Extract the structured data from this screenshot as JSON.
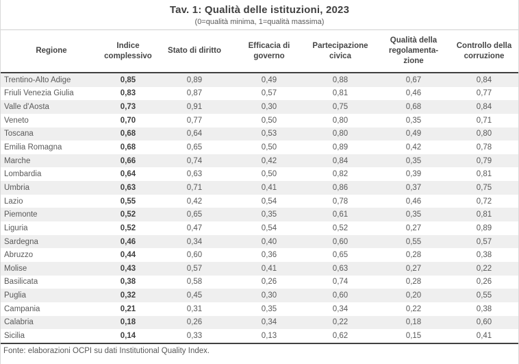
{
  "header": {
    "title": "Tav. 1: Qualità delle istituzioni, 2023",
    "subtitle": "(0=qualità minima, 1=qualità massima)"
  },
  "footer": {
    "source_note": "Fonte: elaborazioni OCPI su dati Institutional Quality Index."
  },
  "colors": {
    "stripe": "#efefef",
    "rule_dark": "#404040",
    "rule_light": "#cfcfcf",
    "text_body": "#595959",
    "text_emphasis": "#3f3f3f"
  },
  "chart_data": {
    "type": "table",
    "title": "Tav. 1: Qualità delle istituzioni, 2023",
    "subtitle": "(0=qualità minima, 1=qualità massima)",
    "columns": [
      "Regione",
      "Indice complessivo",
      "Stato di diritto",
      "Efficacia di governo",
      "Partecipazione civica",
      "Qualità della regolamenta-zione",
      "Controllo della corruzione"
    ],
    "emphasized_column_index": 1,
    "rows": [
      [
        "Trentino-Alto Adige",
        "0,85",
        "0,89",
        "0,49",
        "0,88",
        "0,67",
        "0,84"
      ],
      [
        "Friuli Venezia Giulia",
        "0,83",
        "0,87",
        "0,57",
        "0,81",
        "0,46",
        "0,77"
      ],
      [
        "Valle d'Aosta",
        "0,73",
        "0,91",
        "0,30",
        "0,75",
        "0,68",
        "0,84"
      ],
      [
        "Veneto",
        "0,70",
        "0,77",
        "0,50",
        "0,80",
        "0,35",
        "0,71"
      ],
      [
        "Toscana",
        "0,68",
        "0,64",
        "0,53",
        "0,80",
        "0,49",
        "0,80"
      ],
      [
        "Emilia Romagna",
        "0,68",
        "0,65",
        "0,50",
        "0,89",
        "0,42",
        "0,78"
      ],
      [
        "Marche",
        "0,66",
        "0,74",
        "0,42",
        "0,84",
        "0,35",
        "0,79"
      ],
      [
        "Lombardia",
        "0,64",
        "0,63",
        "0,50",
        "0,82",
        "0,39",
        "0,81"
      ],
      [
        "Umbria",
        "0,63",
        "0,71",
        "0,41",
        "0,86",
        "0,37",
        "0,75"
      ],
      [
        "Lazio",
        "0,55",
        "0,42",
        "0,54",
        "0,78",
        "0,46",
        "0,72"
      ],
      [
        "Piemonte",
        "0,52",
        "0,65",
        "0,35",
        "0,61",
        "0,35",
        "0,81"
      ],
      [
        "Liguria",
        "0,52",
        "0,47",
        "0,54",
        "0,52",
        "0,27",
        "0,89"
      ],
      [
        "Sardegna",
        "0,46",
        "0,34",
        "0,40",
        "0,60",
        "0,55",
        "0,57"
      ],
      [
        "Abruzzo",
        "0,44",
        "0,60",
        "0,36",
        "0,65",
        "0,28",
        "0,38"
      ],
      [
        "Molise",
        "0,43",
        "0,57",
        "0,41",
        "0,63",
        "0,27",
        "0,22"
      ],
      [
        "Basilicata",
        "0,38",
        "0,58",
        "0,26",
        "0,74",
        "0,28",
        "0,26"
      ],
      [
        "Puglia",
        "0,32",
        "0,45",
        "0,30",
        "0,60",
        "0,20",
        "0,55"
      ],
      [
        "Campania",
        "0,21",
        "0,31",
        "0,35",
        "0,34",
        "0,22",
        "0,38"
      ],
      [
        "Calabria",
        "0,18",
        "0,26",
        "0,34",
        "0,22",
        "0,18",
        "0,60"
      ],
      [
        "Sicilia",
        "0,14",
        "0,33",
        "0,13",
        "0,62",
        "0,15",
        "0,41"
      ]
    ],
    "source": "Fonte: elaborazioni OCPI su dati Institutional Quality Index."
  }
}
